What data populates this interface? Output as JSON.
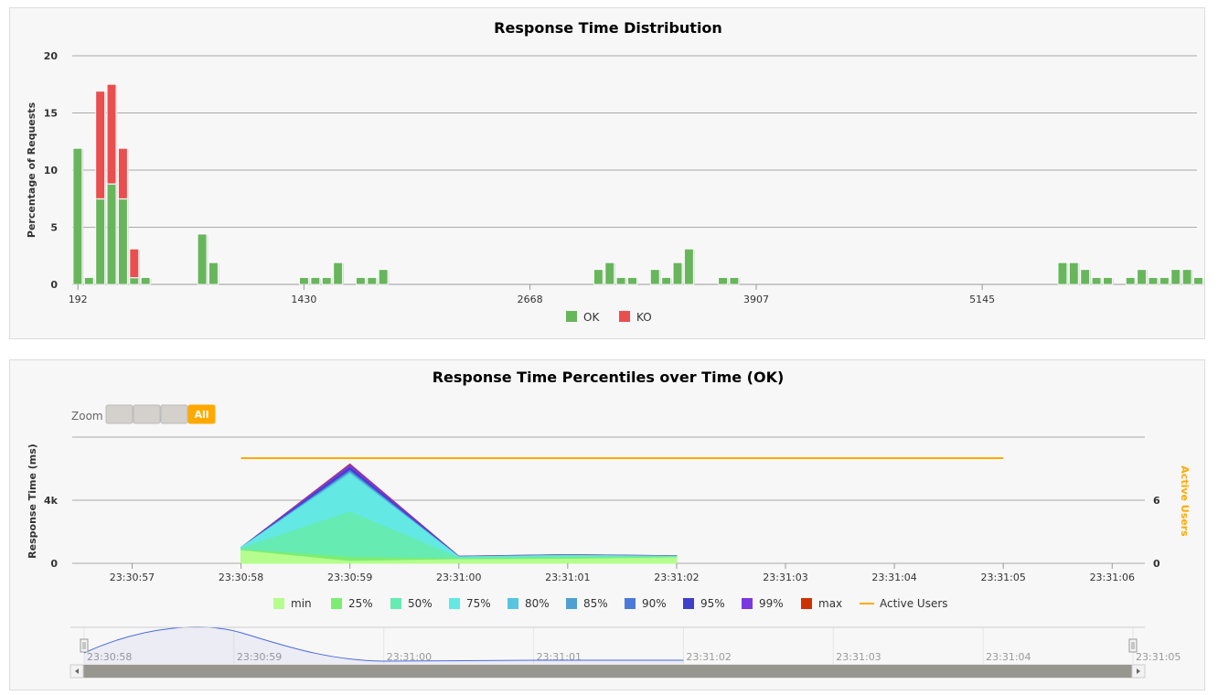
{
  "chart_data": [
    {
      "type": "bar",
      "title": "Response Time Distribution",
      "ylabel": "Percentage of Requests",
      "xlabel": "",
      "stacked": true,
      "ylim": [
        0,
        20
      ],
      "y_ticks": [
        "0",
        "5",
        "10",
        "15",
        "20"
      ],
      "x_ticks": [
        {
          "label": "192",
          "value": 192
        },
        {
          "label": "1430",
          "value": 1430
        },
        {
          "label": "2668",
          "value": 2668
        },
        {
          "label": "3907",
          "value": 3907
        },
        {
          "label": "5145",
          "value": 5145
        }
      ],
      "x_range": [
        161,
        6321
      ],
      "bin_width": 62,
      "bin_start": 161,
      "legend": [
        "OK",
        "KO"
      ],
      "legend_position": "bottom",
      "colors": {
        "OK": "#68b65c",
        "KO": "#e94f4f"
      },
      "series": [
        {
          "name": "OK",
          "bins": [
            [
              0,
              11.9
            ],
            [
              1,
              0.6
            ],
            [
              2,
              7.5
            ],
            [
              3,
              8.8
            ],
            [
              4,
              7.5
            ],
            [
              5,
              0.6
            ],
            [
              6,
              0.6
            ],
            [
              11,
              4.4
            ],
            [
              12,
              1.9
            ],
            [
              20,
              0.6
            ],
            [
              21,
              0.6
            ],
            [
              22,
              0.6
            ],
            [
              23,
              1.9
            ],
            [
              25,
              0.6
            ],
            [
              26,
              0.6
            ],
            [
              27,
              1.3
            ],
            [
              46,
              1.3
            ],
            [
              47,
              1.9
            ],
            [
              48,
              0.6
            ],
            [
              49,
              0.6
            ],
            [
              51,
              1.3
            ],
            [
              52,
              0.6
            ],
            [
              53,
              1.9
            ],
            [
              54,
              3.1
            ],
            [
              57,
              0.6
            ],
            [
              58,
              0.6
            ],
            [
              87,
              1.9
            ],
            [
              88,
              1.9
            ],
            [
              89,
              1.3
            ],
            [
              90,
              0.6
            ],
            [
              91,
              0.6
            ],
            [
              93,
              0.6
            ],
            [
              94,
              1.3
            ],
            [
              95,
              0.6
            ],
            [
              96,
              0.6
            ],
            [
              97,
              1.3
            ],
            [
              98,
              1.3
            ],
            [
              99,
              0.6
            ]
          ]
        },
        {
          "name": "KO",
          "bins": [
            [
              2,
              9.4
            ],
            [
              3,
              8.7
            ],
            [
              4,
              4.4
            ],
            [
              5,
              2.5
            ]
          ]
        }
      ]
    },
    {
      "type": "area",
      "title": "Response Time Percentiles over Time (OK)",
      "ylabel": "Response Time (ms)",
      "y2label": "Active Users",
      "y_ticks": [
        "0",
        "4k"
      ],
      "ylim": [
        0,
        8000
      ],
      "y2_ticks": [
        "0",
        "6"
      ],
      "y2lim": [
        0,
        12
      ],
      "x_ticks": [
        "23:30:57",
        "23:30:58",
        "23:30:59",
        "23:31:00",
        "23:31:01",
        "23:31:02",
        "23:31:03",
        "23:31:04",
        "23:31:05",
        "23:31:06"
      ],
      "x": [
        "23:30:58",
        "23:30:59",
        "23:31:00",
        "23:31:01",
        "23:31:02"
      ],
      "legend_position": "bottom",
      "series": [
        {
          "name": "max",
          "color": "#cc3300",
          "values": [
            1000,
            6300,
            450,
            550,
            480
          ]
        },
        {
          "name": "99%",
          "color": "#7b38e0",
          "values": [
            1000,
            6250,
            450,
            540,
            480
          ]
        },
        {
          "name": "95%",
          "color": "#3f3fc9",
          "values": [
            1000,
            6050,
            440,
            530,
            470
          ]
        },
        {
          "name": "90%",
          "color": "#4d79d9",
          "values": [
            1000,
            5900,
            430,
            520,
            460
          ]
        },
        {
          "name": "85%",
          "color": "#4ea0d2",
          "values": [
            1000,
            5800,
            420,
            510,
            460
          ]
        },
        {
          "name": "80%",
          "color": "#56c6df",
          "values": [
            1000,
            5750,
            410,
            500,
            450
          ]
        },
        {
          "name": "75%",
          "color": "#63e8e3",
          "values": [
            1000,
            5650,
            400,
            490,
            440
          ]
        },
        {
          "name": "50%",
          "color": "#66ebb2",
          "values": [
            950,
            3250,
            350,
            420,
            400
          ]
        },
        {
          "name": "25%",
          "color": "#7ded72",
          "values": [
            850,
            380,
            280,
            330,
            380
          ]
        },
        {
          "name": "min",
          "color": "#b5fd8c",
          "values": [
            800,
            120,
            230,
            260,
            350
          ]
        },
        {
          "name": "Active Users",
          "color": "#ffa900",
          "line": true,
          "axis": "right",
          "x": [
            "23:30:58",
            "23:31:05"
          ],
          "values": [
            10,
            10
          ]
        }
      ],
      "legend": [
        "min",
        "25%",
        "50%",
        "75%",
        "80%",
        "85%",
        "90%",
        "95%",
        "99%",
        "max",
        "Active Users"
      ]
    }
  ],
  "zoom": {
    "label": "Zoom",
    "buttons": [
      "",
      "",
      "",
      "All"
    ],
    "active": "All",
    "active_color": "#ffa900"
  },
  "navigator": {
    "labels": [
      "23:30:58",
      "23:30:59",
      "23:31:00",
      "23:31:01",
      "23:31:02",
      "23:31:03",
      "23:31:04",
      "23:31:05"
    ]
  }
}
